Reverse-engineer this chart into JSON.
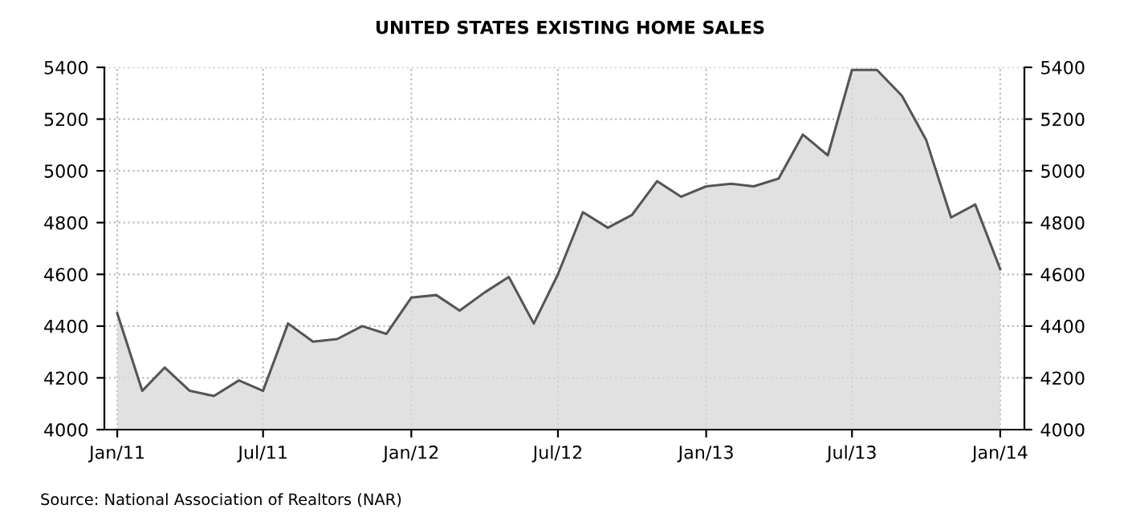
{
  "chart_data": {
    "type": "area",
    "title": "UNITED STATES EXISTING HOME SALES",
    "x": [
      "2011-01",
      "2011-02",
      "2011-03",
      "2011-04",
      "2011-05",
      "2011-06",
      "2011-07",
      "2011-08",
      "2011-09",
      "2011-10",
      "2011-11",
      "2011-12",
      "2012-01",
      "2012-02",
      "2012-03",
      "2012-04",
      "2012-05",
      "2012-06",
      "2012-07",
      "2012-08",
      "2012-09",
      "2012-10",
      "2012-11",
      "2012-12",
      "2013-01",
      "2013-02",
      "2013-03",
      "2013-04",
      "2013-05",
      "2013-06",
      "2013-07",
      "2013-08",
      "2013-09",
      "2013-10",
      "2013-11",
      "2013-12",
      "2014-01"
    ],
    "series": [
      {
        "color": "#555555",
        "values": [
          4450,
          4150,
          4240,
          4150,
          4130,
          4190,
          4150,
          4410,
          4340,
          4350,
          4400,
          4370,
          4510,
          4520,
          4460,
          4530,
          4590,
          4410,
          4600,
          4840,
          4780,
          4830,
          4960,
          4900,
          4940,
          4950,
          4940,
          4970,
          5140,
          5060,
          5390,
          5390,
          5290,
          5120,
          4820,
          4870,
          4620
        ]
      }
    ],
    "xlim": [
      "2010-12-16",
      "2014-01-31"
    ],
    "xticks": [
      {
        "value": "2011-01",
        "label": "Jan/11"
      },
      {
        "value": "2011-07",
        "label": "Jul/11"
      },
      {
        "value": "2012-01",
        "label": "Jan/12"
      },
      {
        "value": "2012-07",
        "label": "Jul/12"
      },
      {
        "value": "2013-01",
        "label": "Jan/13"
      },
      {
        "value": "2013-07",
        "label": "Jul/13"
      },
      {
        "value": "2014-01",
        "label": "Jan/14"
      }
    ],
    "ylim": [
      4000,
      5400
    ],
    "yticks": [
      4000,
      4200,
      4400,
      4600,
      4800,
      5000,
      5200,
      5400
    ],
    "y2lim": [
      4000,
      5400
    ],
    "y2ticks": [
      4000,
      4200,
      4400,
      4600,
      4800,
      5000,
      5200,
      5400
    ],
    "grid": true,
    "line_style": "solid",
    "annotations": [
      "Source: National Association of Realtors (NAR)"
    ]
  }
}
